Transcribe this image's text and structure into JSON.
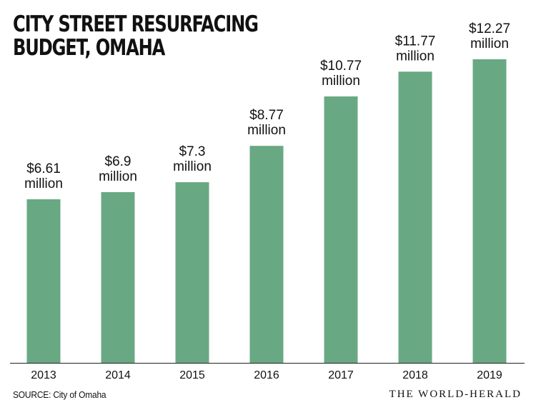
{
  "chart_data": {
    "type": "bar",
    "title_lines": [
      "CITY STREET RESURFACING",
      "BUDGET, OMAHA"
    ],
    "categories": [
      "2013",
      "2014",
      "2015",
      "2016",
      "2017",
      "2018",
      "2019"
    ],
    "values": [
      6.61,
      6.9,
      7.3,
      8.77,
      10.77,
      11.77,
      12.27
    ],
    "value_labels": [
      [
        "$6.61",
        "million"
      ],
      [
        "$6.9",
        "million"
      ],
      [
        "$7.3",
        "million"
      ],
      [
        "$8.77",
        "million"
      ],
      [
        "$10.77",
        "million"
      ],
      [
        "$11.77",
        "million"
      ],
      [
        "$12.27",
        "million"
      ]
    ],
    "unit": "$ million",
    "ylim": [
      0,
      12.27
    ],
    "grid": false,
    "legend": false,
    "bar_color": "#68a983",
    "baseline_color": "#222222",
    "xlabel": "",
    "ylabel": ""
  },
  "footer": {
    "source": "SOURCE: City of Omaha",
    "publisher": "THE WORLD-HERALD"
  }
}
